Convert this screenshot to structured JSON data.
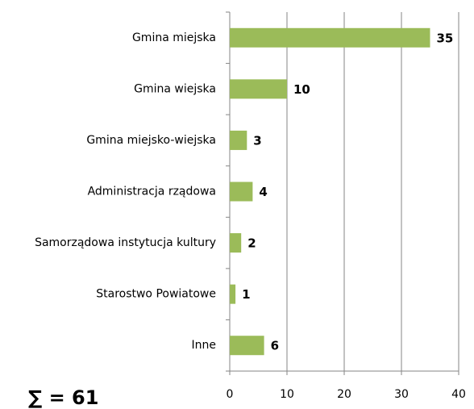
{
  "chart_data": {
    "type": "bar",
    "orientation": "horizontal",
    "categories": [
      "Gmina miejska",
      "Gmina wiejska",
      "Gmina miejsko-wiejska",
      "Administracja rządowa",
      "Samorządowa instytucja kultury",
      "Starostwo Powiatowe",
      "Inne"
    ],
    "values": [
      35,
      10,
      3,
      4,
      2,
      1,
      6
    ],
    "color": "#9bbb59",
    "xlim": [
      0,
      40
    ],
    "xticks": [
      0,
      10,
      20,
      30,
      40
    ],
    "grid": true,
    "annotation": "∑ = 61"
  }
}
